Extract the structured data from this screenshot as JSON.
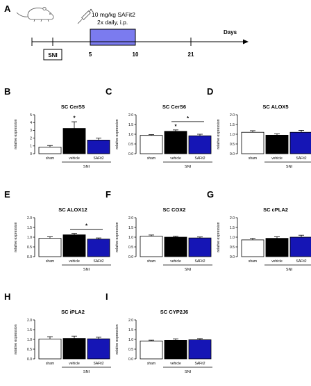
{
  "figure": {
    "timeline": {
      "panel_letter": "A",
      "dose_line1": "10 mg/kg SAFit2",
      "dose_line2": "2x daily, i.p.",
      "axis_label": "Days",
      "sni_label": "SNI",
      "tick_labels": [
        "5",
        "10",
        "21"
      ],
      "treatment_color": "#7b7bef",
      "mouse_icon": "mouse-icon",
      "syringe_icon": "syringe-icon"
    },
    "colors": {
      "sham": "#ffffff",
      "vehicle": "#000000",
      "safit2": "#1515b5"
    },
    "ylabel": "relative expression",
    "group_label": "SNI"
  },
  "chart_data": [
    {
      "type": "bar",
      "panel_letter": "B",
      "title": "SC CerS5",
      "categories": [
        "sham",
        "vehicle",
        "SAFit2"
      ],
      "values": [
        0.85,
        3.25,
        1.75
      ],
      "errors": [
        0.2,
        0.85,
        0.25
      ],
      "ylim": [
        0,
        5
      ],
      "yticks": [
        "0",
        "1",
        "2",
        "3",
        "4",
        "5"
      ],
      "ylabel": "relative expression",
      "significance": [
        {
          "label": "*",
          "bar": 1
        }
      ],
      "group_label": "SNI"
    },
    {
      "type": "bar",
      "panel_letter": "C",
      "title": "SC CerS6",
      "categories": [
        "sham",
        "vehicle",
        "SAFit2"
      ],
      "values": [
        0.94,
        1.15,
        0.92
      ],
      "errors": [
        0.04,
        0.07,
        0.08
      ],
      "ylim": [
        0,
        2.0
      ],
      "yticks": [
        "0.0",
        "0.5",
        "1.0",
        "1.5",
        "2.0"
      ],
      "ylabel": "relative expression",
      "significance": [
        {
          "label": "*",
          "bar": 1
        },
        {
          "label": "*",
          "from": 1,
          "to": 2
        }
      ],
      "group_label": "SNI"
    },
    {
      "type": "bar",
      "panel_letter": "D",
      "title": "SC ALOX5",
      "categories": [
        "sham",
        "vehicle",
        "SAFit2"
      ],
      "values": [
        1.1,
        0.95,
        1.1
      ],
      "errors": [
        0.08,
        0.07,
        0.1
      ],
      "ylim": [
        0,
        2.0
      ],
      "yticks": [
        "0.0",
        "0.5",
        "1.0",
        "1.5",
        "2.0"
      ],
      "ylabel": "relative expression",
      "significance": [],
      "group_label": "SNI"
    },
    {
      "type": "bar",
      "panel_letter": "E",
      "title": "SC ALOX12",
      "categories": [
        "sham",
        "vehicle",
        "SAFit2"
      ],
      "values": [
        0.94,
        1.12,
        0.9
      ],
      "errors": [
        0.08,
        0.07,
        0.06
      ],
      "ylim": [
        0,
        2.0
      ],
      "yticks": [
        "0.0",
        "0.5",
        "1.0",
        "1.5",
        "2.0"
      ],
      "ylabel": "relative expression",
      "significance": [
        {
          "label": "*",
          "from": 1,
          "to": 2
        }
      ],
      "group_label": "SNI"
    },
    {
      "type": "bar",
      "panel_letter": "F",
      "title": "SC COX2",
      "categories": [
        "sham",
        "vehicle",
        "SAFit2"
      ],
      "values": [
        1.05,
        1.0,
        0.96
      ],
      "errors": [
        0.06,
        0.05,
        0.05
      ],
      "ylim": [
        0,
        2.0
      ],
      "yticks": [
        "0.0",
        "0.5",
        "1.0",
        "1.5",
        "2.0"
      ],
      "ylabel": "relative expression",
      "significance": [],
      "group_label": "SNI"
    },
    {
      "type": "bar",
      "panel_letter": "G",
      "title": "SC cPLA2",
      "categories": [
        "sham",
        "vehicle",
        "SAFit2"
      ],
      "values": [
        0.86,
        0.94,
        1.0
      ],
      "errors": [
        0.08,
        0.08,
        0.1
      ],
      "ylim": [
        0,
        2.0
      ],
      "yticks": [
        "0.0",
        "0.5",
        "1.0",
        "1.5",
        "2.0"
      ],
      "ylabel": "relative expression",
      "significance": [],
      "group_label": "SNI"
    },
    {
      "type": "bar",
      "panel_letter": "H",
      "title": "SC iPLA2",
      "categories": [
        "sham",
        "vehicle",
        "SAFit2"
      ],
      "values": [
        1.02,
        1.05,
        1.03
      ],
      "errors": [
        0.12,
        0.12,
        0.08
      ],
      "ylim": [
        0,
        2.0
      ],
      "yticks": [
        "0.0",
        "0.5",
        "1.0",
        "1.5",
        "2.0"
      ],
      "ylabel": "relative expression",
      "significance": [],
      "group_label": "SNI"
    },
    {
      "type": "bar",
      "panel_letter": "I",
      "title": "SC CYP2J6",
      "categories": [
        "sham",
        "vehicle",
        "SAFit2"
      ],
      "values": [
        0.92,
        0.95,
        0.98
      ],
      "errors": [
        0.04,
        0.08,
        0.06
      ],
      "ylim": [
        0,
        2.0
      ],
      "yticks": [
        "0.0",
        "0.5",
        "1.0",
        "1.5",
        "2.0"
      ],
      "ylabel": "relative expression",
      "significance": [],
      "group_label": "SNI"
    }
  ]
}
